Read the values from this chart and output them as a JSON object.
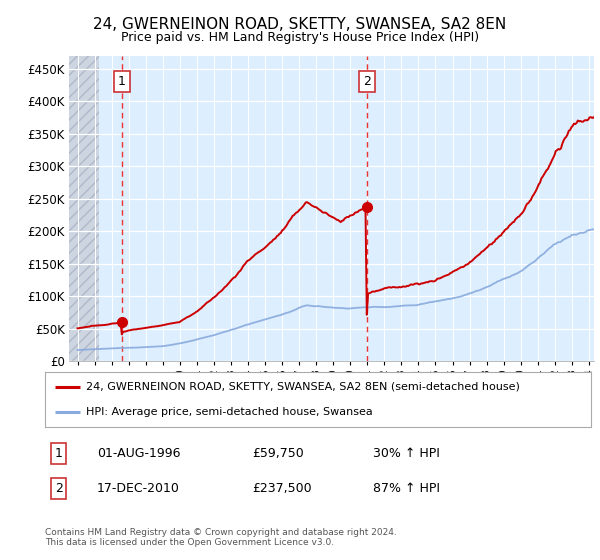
{
  "title": "24, GWERNEINON ROAD, SKETTY, SWANSEA, SA2 8EN",
  "subtitle": "Price paid vs. HM Land Registry's House Price Index (HPI)",
  "red_line_label": "24, GWERNEINON ROAD, SKETTY, SWANSEA, SA2 8EN (semi-detached house)",
  "blue_line_label": "HPI: Average price, semi-detached house, Swansea",
  "annotation1_label": "1",
  "annotation1_date": "01-AUG-1996",
  "annotation1_price": "£59,750",
  "annotation1_hpi": "30% ↑ HPI",
  "annotation2_label": "2",
  "annotation2_date": "17-DEC-2010",
  "annotation2_price": "£237,500",
  "annotation2_hpi": "87% ↑ HPI",
  "footer": "Contains HM Land Registry data © Crown copyright and database right 2024.\nThis data is licensed under the Open Government Licence v3.0.",
  "ylim": [
    0,
    470000
  ],
  "yticks": [
    0,
    50000,
    100000,
    150000,
    200000,
    250000,
    300000,
    350000,
    400000,
    450000
  ],
  "yticklabels": [
    "£0",
    "£50K",
    "£100K",
    "£150K",
    "£200K",
    "£250K",
    "£300K",
    "£350K",
    "£400K",
    "£450K"
  ],
  "x_start_year": 1994,
  "x_end_year": 2024,
  "sale1_year": 1996.6,
  "sale1_price": 59750,
  "sale2_year": 2010.96,
  "sale2_price": 237500,
  "plot_bg_color": "#ddeeff",
  "hatch_color": "#c8d0de",
  "grid_color": "#ffffff",
  "red_line_color": "#cc0000",
  "blue_line_color": "#88aadd",
  "vline_color": "#ee3333"
}
